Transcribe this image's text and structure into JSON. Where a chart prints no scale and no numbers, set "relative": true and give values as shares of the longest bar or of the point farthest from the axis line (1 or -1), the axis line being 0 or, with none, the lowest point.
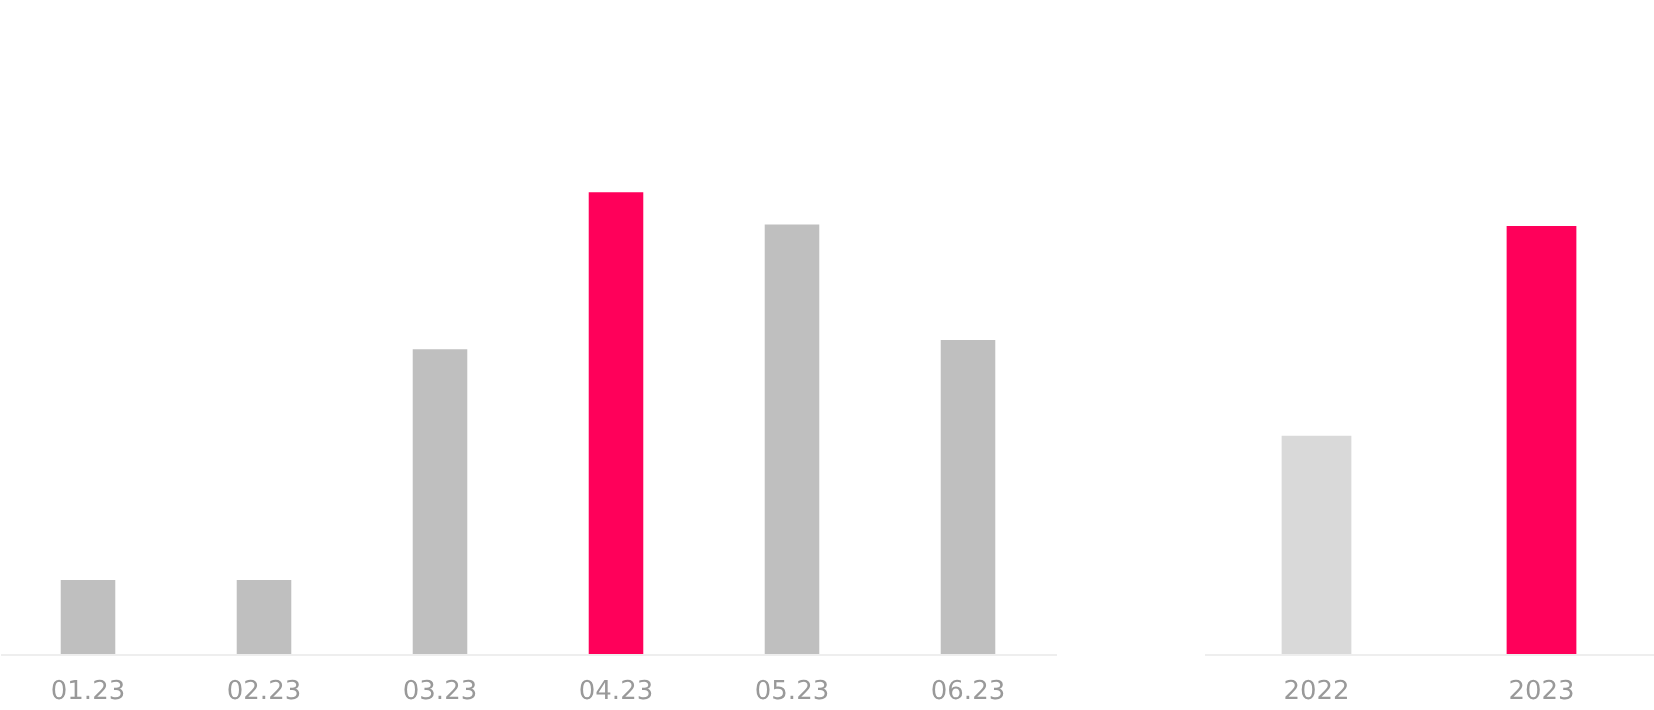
{
  "chart_data": [
    {
      "type": "bar",
      "relative": true,
      "categories": [
        "01.23",
        "02.23",
        "03.23",
        "04.23",
        "05.23",
        "06.23"
      ],
      "values": [
        0.16,
        0.16,
        0.66,
        1,
        0.93,
        0.68
      ],
      "colors": [
        "#bfbfbf",
        "#bfbfbf",
        "#bfbfbf",
        "#ff005a",
        "#bfbfbf",
        "#bfbfbf"
      ],
      "grid": false,
      "tick_labels": "x"
    },
    {
      "type": "bar",
      "relative": true,
      "categories": [
        "2022",
        "2023"
      ],
      "values": [
        0.51,
        1
      ],
      "colors": [
        "#d9d9d9",
        "#ff005a"
      ],
      "grid": false,
      "tick_labels": "x"
    }
  ]
}
